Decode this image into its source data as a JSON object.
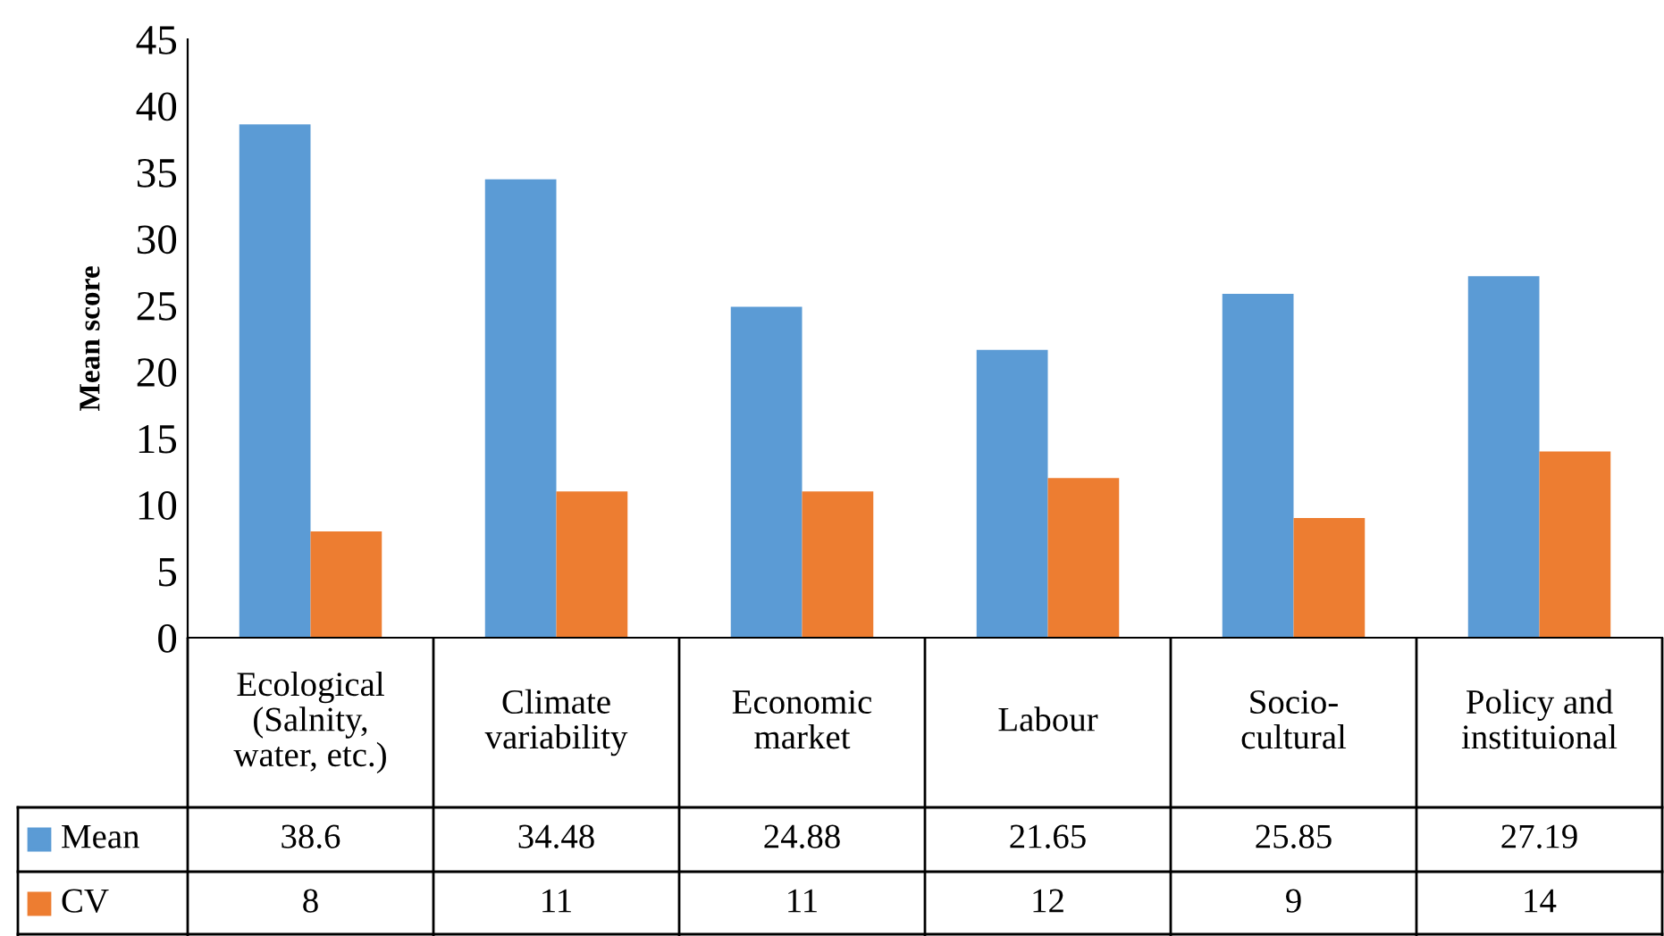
{
  "chart_data": {
    "type": "bar",
    "ylabel": "Mean score",
    "categories": [
      "Ecological\n(Salnity,\nwater, etc.)",
      "Climate\nvariability",
      "Economic\nmarket",
      "Labour",
      "Socio-\ncultural",
      "Policy and\ninstituional"
    ],
    "series": [
      {
        "name": "Mean",
        "color": "#5b9bd5",
        "values": [
          38.6,
          34.48,
          24.88,
          21.65,
          25.85,
          27.19
        ]
      },
      {
        "name": "CV",
        "color": "#ed7d31",
        "values": [
          8,
          11,
          11,
          12,
          9,
          14
        ]
      }
    ],
    "ylim": [
      0,
      45
    ],
    "yticks": [
      0,
      5,
      10,
      15,
      20,
      25,
      30,
      35,
      40,
      45
    ],
    "grid": false,
    "legend": "bottom",
    "data_labels": true
  }
}
